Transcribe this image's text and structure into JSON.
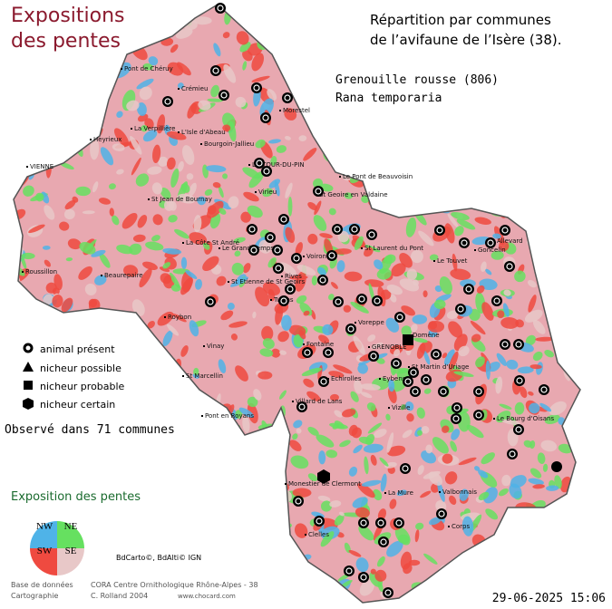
{
  "header": {
    "map_title": [
      "Expositions",
      "des pentes"
    ],
    "subtitle": [
      "Répartition par communes",
      "de l’avifaune de l’Isère (38)."
    ]
  },
  "species": {
    "common": "Grenouille rousse  (806)",
    "latin": "Rana temporaria"
  },
  "legend": {
    "items": [
      "animal présent",
      "nicheur possible",
      "nicheur probable",
      "nicheur certain"
    ]
  },
  "observed": "Observé dans 71 communes",
  "exposure": {
    "title": "Exposition des pentes",
    "labels": [
      "NW",
      "NE",
      "SW",
      "SE"
    ]
  },
  "sources": {
    "copyright": "BdCarto©, BdAlti© IGN",
    "rows": [
      [
        "Base de données",
        "CORA Centre Ornithologique Rhône-Alpes - 38"
      ],
      [
        "Cartographie",
        "C. Rolland 2004",
        "www.chocard.com"
      ]
    ]
  },
  "date": "29-06-2025 15:06",
  "towns": [
    "Pont de Chéruy",
    "Crémieu",
    "Morestel",
    "Heyrieux",
    "La Verpillière",
    "L'Isle d'Abeau",
    "Bourgoin-Jallieu",
    "LA TOUR-DU-PIN",
    "Le Pont de Beauvoisin",
    "VIENNE",
    "St Jean de Bournay",
    "Virieu",
    "St Geoire en Valdaine",
    "La Côte St André",
    "Le Grand Lemps",
    "Roussillon",
    "Beaurepaire",
    "St Etienne de St Geoirs",
    "Voiron",
    "Rives",
    "Tullins",
    "St Laurent du Pont",
    "Le Touvet",
    "Goncelin",
    "Allevard",
    "Roybon",
    "Voreppe",
    "Fontaine",
    "GRENOBLE",
    "Domène",
    "Vinay",
    "St Marcellin",
    "Pont en Royans",
    "Villard de Lans",
    "Echirolles",
    "Eybens",
    "Vizille",
    "St Martin d'Uriage",
    "Le Bourg d'Oisans",
    "Monestier de Clermont",
    "La Mure",
    "Valbonnais",
    "Corps",
    "Clelles"
  ]
}
